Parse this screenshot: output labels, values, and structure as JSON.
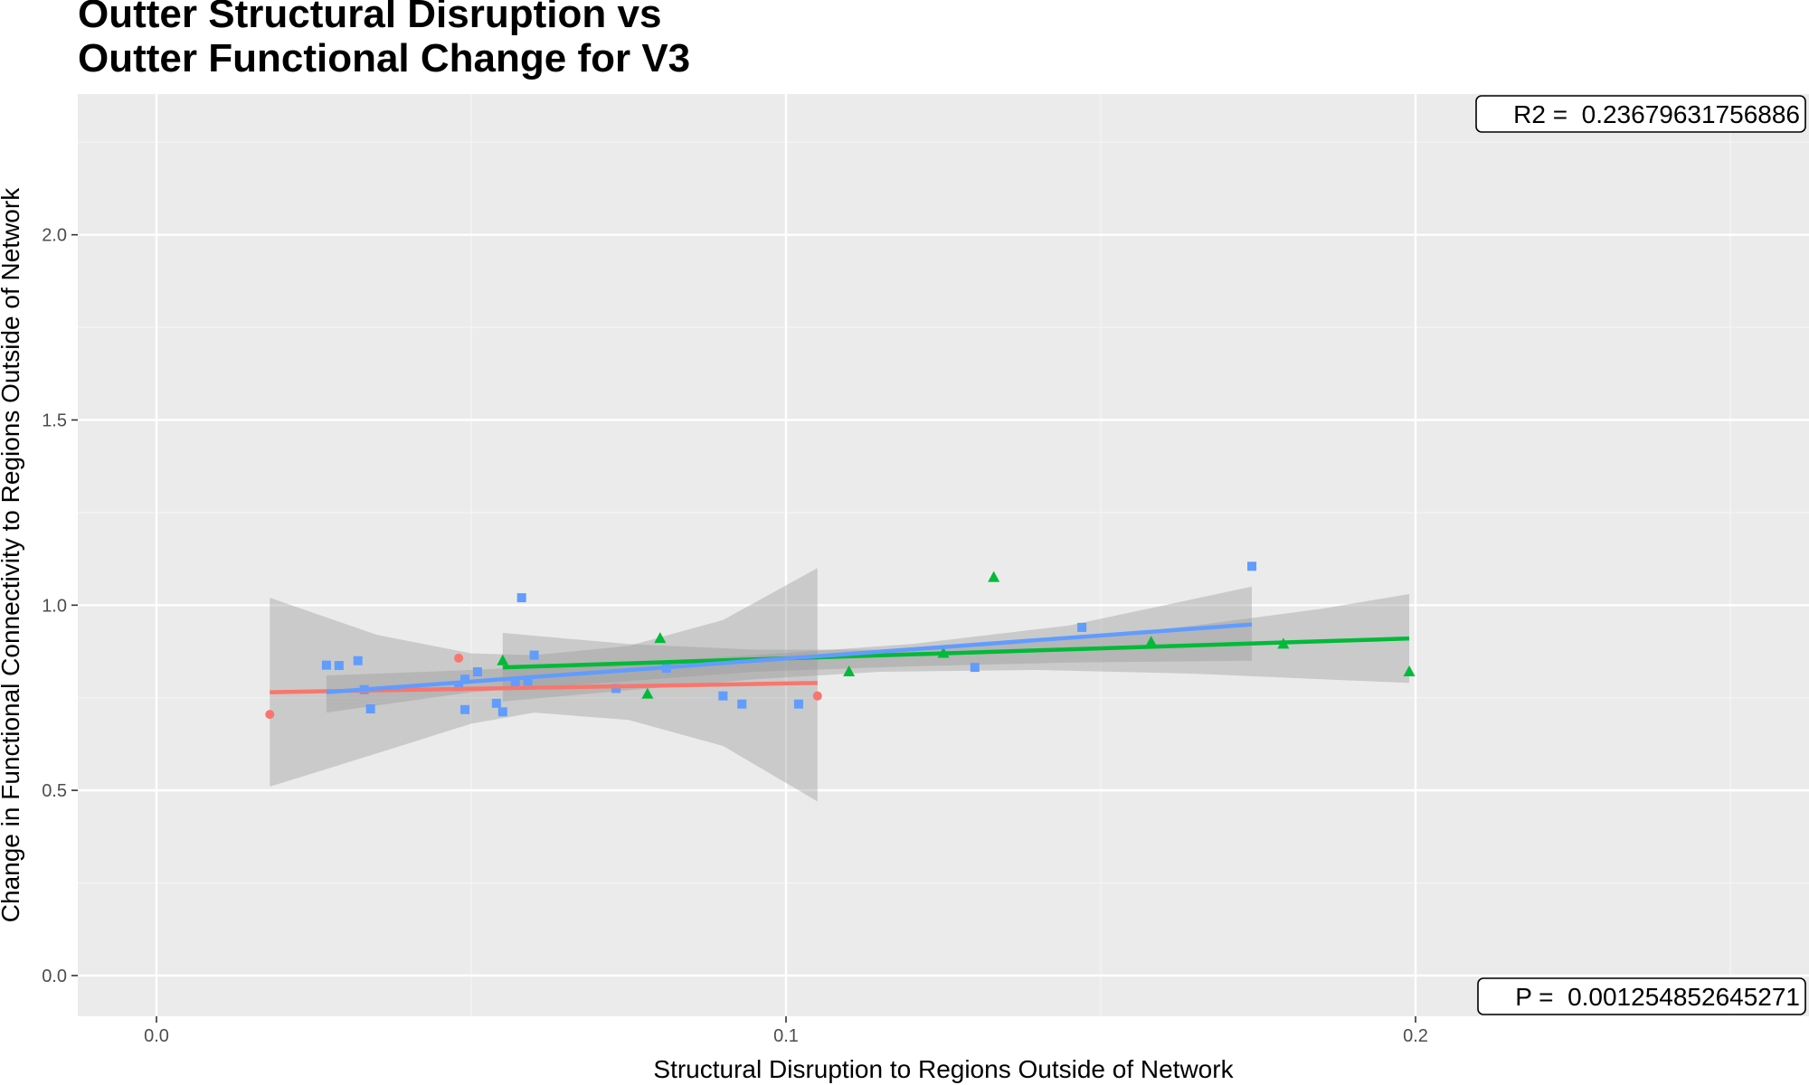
{
  "chart_data": {
    "type": "scatter",
    "title_lines": [
      "Outter Structural Disruption vs",
      "Outter Functional Change for V3"
    ],
    "xlabel": "Structural Disruption to Regions Outside of Network",
    "ylabel": "Change in Functional Connectivity to Regions Outside of Network",
    "xlim": [
      -0.0125,
      0.2625
    ],
    "ylim": [
      -0.11,
      2.38
    ],
    "x_ticks": [
      0.0,
      0.1,
      0.2
    ],
    "x_tick_labels": [
      "0.0",
      "0.1",
      "0.2"
    ],
    "y_ticks": [
      0.0,
      0.5,
      1.0,
      1.5,
      2.0
    ],
    "y_tick_labels": [
      "0.0",
      "0.5",
      "1.0",
      "1.5",
      "2.0"
    ],
    "grid": true,
    "legend": "none",
    "series": [
      {
        "color": "#f8766d",
        "shape": "circle",
        "points": [
          [
            0.018,
            0.705
          ],
          [
            0.048,
            0.857
          ],
          [
            0.105,
            0.755
          ]
        ],
        "fit": {
          "x": [
            0.018,
            0.105
          ],
          "y": [
            0.765,
            0.79
          ]
        },
        "ci": {
          "x": [
            0.018,
            0.035,
            0.05,
            0.06,
            0.075,
            0.09,
            0.105
          ],
          "upper": [
            1.02,
            0.92,
            0.87,
            0.865,
            0.89,
            0.96,
            1.1
          ],
          "lower": [
            0.51,
            0.6,
            0.68,
            0.71,
            0.69,
            0.62,
            0.47
          ]
        }
      },
      {
        "color": "#00ba38",
        "shape": "triangle",
        "points": [
          [
            0.055,
            0.85
          ],
          [
            0.078,
            0.76
          ],
          [
            0.08,
            0.91
          ],
          [
            0.11,
            0.82
          ],
          [
            0.125,
            0.87
          ],
          [
            0.133,
            1.075
          ],
          [
            0.158,
            0.9
          ],
          [
            0.179,
            0.895
          ],
          [
            0.199,
            0.82
          ]
        ],
        "fit": {
          "x": [
            0.055,
            0.199
          ],
          "y": [
            0.832,
            0.91
          ]
        },
        "ci": {
          "x": [
            0.055,
            0.075,
            0.095,
            0.115,
            0.14,
            0.165,
            0.185,
            0.199
          ],
          "upper": [
            0.925,
            0.895,
            0.88,
            0.88,
            0.9,
            0.945,
            0.99,
            1.03
          ],
          "lower": [
            0.74,
            0.77,
            0.8,
            0.82,
            0.825,
            0.815,
            0.8,
            0.79
          ]
        }
      },
      {
        "color": "#619cff",
        "shape": "square",
        "points": [
          [
            0.027,
            0.838
          ],
          [
            0.029,
            0.837
          ],
          [
            0.032,
            0.85
          ],
          [
            0.033,
            0.772
          ],
          [
            0.034,
            0.72
          ],
          [
            0.048,
            0.78
          ],
          [
            0.049,
            0.718
          ],
          [
            0.049,
            0.8
          ],
          [
            0.051,
            0.82
          ],
          [
            0.054,
            0.735
          ],
          [
            0.055,
            0.712
          ],
          [
            0.057,
            0.79
          ],
          [
            0.058,
            1.02
          ],
          [
            0.059,
            0.795
          ],
          [
            0.06,
            0.865
          ],
          [
            0.073,
            0.775
          ],
          [
            0.081,
            0.83
          ],
          [
            0.09,
            0.755
          ],
          [
            0.093,
            0.733
          ],
          [
            0.102,
            0.733
          ],
          [
            0.13,
            0.832
          ],
          [
            0.147,
            0.94
          ],
          [
            0.174,
            1.105
          ]
        ],
        "fit": {
          "x": [
            0.027,
            0.174
          ],
          "y": [
            0.765,
            0.948
          ]
        },
        "ci": {
          "x": [
            0.027,
            0.05,
            0.075,
            0.095,
            0.12,
            0.145,
            0.174
          ],
          "upper": [
            0.81,
            0.825,
            0.845,
            0.865,
            0.895,
            0.945,
            1.05
          ],
          "lower": [
            0.71,
            0.765,
            0.795,
            0.82,
            0.835,
            0.845,
            0.85
          ]
        }
      }
    ],
    "annotations": [
      {
        "position": "top-right",
        "label": "R2 =  0.23679631756886"
      },
      {
        "position": "bottom-right",
        "label": "P =  0.001254852645271"
      }
    ]
  }
}
